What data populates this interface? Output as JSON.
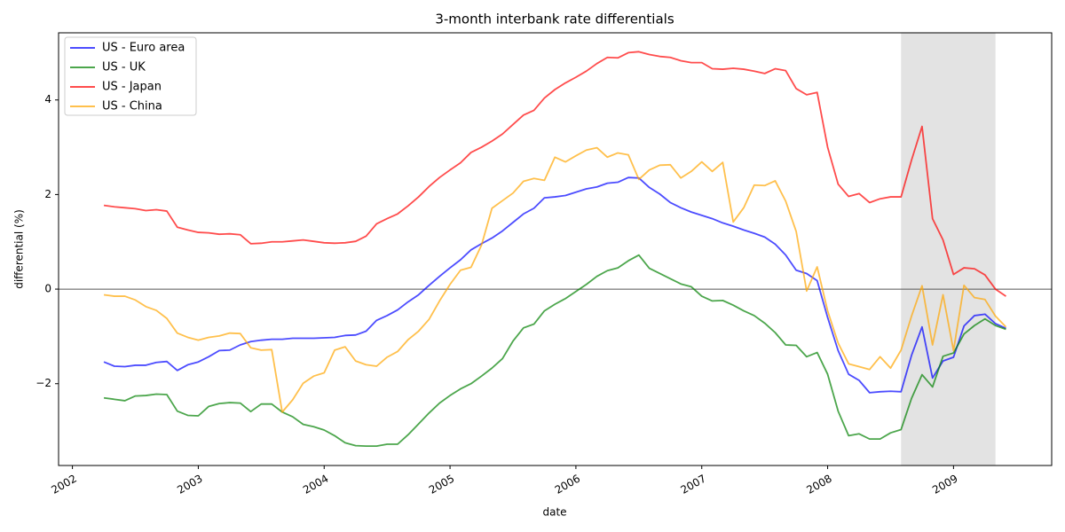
{
  "chart_data": {
    "type": "line",
    "title": "3-month interbank rate differentials",
    "x_label": "date",
    "y_label": "differential (%)",
    "x": [
      "2002-04",
      "2002-05",
      "2002-06",
      "2002-07",
      "2002-08",
      "2002-09",
      "2002-10",
      "2002-11",
      "2002-12",
      "2003-01",
      "2003-02",
      "2003-03",
      "2003-04",
      "2003-05",
      "2003-06",
      "2003-07",
      "2003-08",
      "2003-09",
      "2003-10",
      "2003-11",
      "2003-12",
      "2004-01",
      "2004-02",
      "2004-03",
      "2004-04",
      "2004-05",
      "2004-06",
      "2004-07",
      "2004-08",
      "2004-09",
      "2004-10",
      "2004-11",
      "2004-12",
      "2005-01",
      "2005-02",
      "2005-03",
      "2005-04",
      "2005-05",
      "2005-06",
      "2005-07",
      "2005-08",
      "2005-09",
      "2005-10",
      "2005-11",
      "2005-12",
      "2006-01",
      "2006-02",
      "2006-03",
      "2006-04",
      "2006-05",
      "2006-06",
      "2006-07",
      "2006-08",
      "2006-09",
      "2006-10",
      "2006-11",
      "2006-12",
      "2007-01",
      "2007-02",
      "2007-03",
      "2007-04",
      "2007-05",
      "2007-06",
      "2007-07",
      "2007-08",
      "2007-09",
      "2007-10",
      "2007-11",
      "2007-12",
      "2008-01",
      "2008-02",
      "2008-03",
      "2008-04",
      "2008-05",
      "2008-06",
      "2008-07",
      "2008-08",
      "2008-09",
      "2008-10",
      "2008-11",
      "2008-12",
      "2009-01",
      "2009-02",
      "2009-03",
      "2009-04",
      "2009-05",
      "2009-06"
    ],
    "series": [
      {
        "name": "US - Euro area",
        "color": "#0000ff",
        "values": [
          -1.54,
          -1.63,
          -1.64,
          -1.61,
          -1.61,
          -1.55,
          -1.53,
          -1.72,
          -1.6,
          -1.54,
          -1.43,
          -1.3,
          -1.29,
          -1.18,
          -1.11,
          -1.08,
          -1.06,
          -1.06,
          -1.04,
          -1.04,
          -1.04,
          -1.03,
          -1.02,
          -0.98,
          -0.97,
          -0.89,
          -0.66,
          -0.56,
          -0.44,
          -0.27,
          -0.12,
          0.08,
          0.27,
          0.45,
          0.62,
          0.83,
          0.96,
          1.08,
          1.23,
          1.41,
          1.59,
          1.71,
          1.93,
          1.95,
          1.98,
          2.05,
          2.12,
          2.16,
          2.24,
          2.26,
          2.36,
          2.35,
          2.15,
          2.01,
          1.83,
          1.72,
          1.63,
          1.56,
          1.49,
          1.4,
          1.33,
          1.25,
          1.18,
          1.1,
          0.95,
          0.72,
          0.4,
          0.33,
          0.18,
          -0.6,
          -1.3,
          -1.8,
          -1.93,
          -2.19,
          -2.17,
          -2.16,
          -2.17,
          -1.4,
          -0.8,
          -1.88,
          -1.52,
          -1.44,
          -0.78,
          -0.56,
          -0.53,
          -0.73,
          -0.83
        ]
      },
      {
        "name": "US - UK",
        "color": "#008000",
        "values": [
          -2.3,
          -2.33,
          -2.36,
          -2.26,
          -2.25,
          -2.22,
          -2.23,
          -2.58,
          -2.67,
          -2.68,
          -2.48,
          -2.42,
          -2.4,
          -2.41,
          -2.59,
          -2.43,
          -2.43,
          -2.6,
          -2.7,
          -2.86,
          -2.91,
          -2.98,
          -3.1,
          -3.25,
          -3.31,
          -3.32,
          -3.32,
          -3.28,
          -3.28,
          -3.08,
          -2.85,
          -2.62,
          -2.41,
          -2.25,
          -2.11,
          -2.0,
          -1.84,
          -1.67,
          -1.47,
          -1.1,
          -0.82,
          -0.74,
          -0.46,
          -0.32,
          -0.2,
          -0.05,
          0.1,
          0.27,
          0.39,
          0.45,
          0.6,
          0.72,
          0.44,
          0.33,
          0.22,
          0.11,
          0.05,
          -0.15,
          -0.25,
          -0.24,
          -0.34,
          -0.46,
          -0.56,
          -0.72,
          -0.92,
          -1.18,
          -1.19,
          -1.43,
          -1.34,
          -1.8,
          -2.58,
          -3.1,
          -3.06,
          -3.17,
          -3.17,
          -3.04,
          -2.97,
          -2.31,
          -1.81,
          -2.07,
          -1.42,
          -1.35,
          -0.95,
          -0.77,
          -0.63,
          -0.77,
          -0.85
        ]
      },
      {
        "name": "US - Japan",
        "color": "#ff0000",
        "values": [
          1.77,
          1.74,
          1.72,
          1.7,
          1.66,
          1.68,
          1.65,
          1.31,
          1.25,
          1.2,
          1.19,
          1.16,
          1.17,
          1.15,
          0.96,
          0.97,
          1.0,
          1.0,
          1.02,
          1.04,
          1.01,
          0.98,
          0.97,
          0.98,
          1.01,
          1.12,
          1.38,
          1.49,
          1.59,
          1.76,
          1.95,
          2.17,
          2.36,
          2.52,
          2.67,
          2.89,
          3.0,
          3.13,
          3.28,
          3.48,
          3.68,
          3.78,
          4.04,
          4.22,
          4.36,
          4.48,
          4.61,
          4.77,
          4.9,
          4.89,
          5.0,
          5.02,
          4.96,
          4.92,
          4.9,
          4.83,
          4.79,
          4.79,
          4.66,
          4.65,
          4.67,
          4.65,
          4.61,
          4.56,
          4.66,
          4.62,
          4.24,
          4.11,
          4.16,
          3.0,
          2.22,
          1.96,
          2.02,
          1.83,
          1.91,
          1.95,
          1.95,
          2.73,
          3.44,
          1.49,
          1.04,
          0.31,
          0.45,
          0.43,
          0.3,
          0.0,
          -0.15
        ]
      },
      {
        "name": "US - China",
        "color": "#ffa500",
        "values": [
          -0.12,
          -0.15,
          -0.15,
          -0.23,
          -0.37,
          -0.45,
          -0.62,
          -0.93,
          -1.02,
          -1.08,
          -1.02,
          -0.99,
          -0.93,
          -0.94,
          -1.24,
          -1.29,
          -1.28,
          -2.6,
          -2.34,
          -1.99,
          -1.84,
          -1.77,
          -1.29,
          -1.22,
          -1.52,
          -1.6,
          -1.63,
          -1.44,
          -1.32,
          -1.07,
          -0.89,
          -0.64,
          -0.25,
          0.1,
          0.4,
          0.46,
          0.93,
          1.71,
          1.87,
          2.03,
          2.28,
          2.34,
          2.3,
          2.79,
          2.69,
          2.82,
          2.94,
          2.99,
          2.79,
          2.88,
          2.84,
          2.32,
          2.52,
          2.62,
          2.63,
          2.35,
          2.49,
          2.69,
          2.49,
          2.68,
          1.42,
          1.72,
          2.2,
          2.19,
          2.29,
          1.86,
          1.22,
          -0.04,
          0.47,
          -0.46,
          -1.14,
          -1.58,
          -1.64,
          -1.7,
          -1.43,
          -1.67,
          -1.29,
          -0.57,
          0.07,
          -1.18,
          -0.12,
          -1.3,
          0.08,
          -0.18,
          -0.22,
          -0.57,
          -0.8
        ]
      }
    ],
    "line_alpha": 0.7,
    "xlim": [
      2001.89,
      2009.78
    ],
    "xticks": [
      2002,
      2003,
      2004,
      2005,
      2006,
      2007,
      2008,
      2009
    ],
    "ylim": [
      -3.73,
      5.42
    ],
    "yticks": [
      {
        "value": -2,
        "label": "−2"
      },
      0,
      2,
      4
    ],
    "hline": 0,
    "shaded_span": [
      "2008-08",
      "2009-05"
    ],
    "legend": "upper left"
  }
}
